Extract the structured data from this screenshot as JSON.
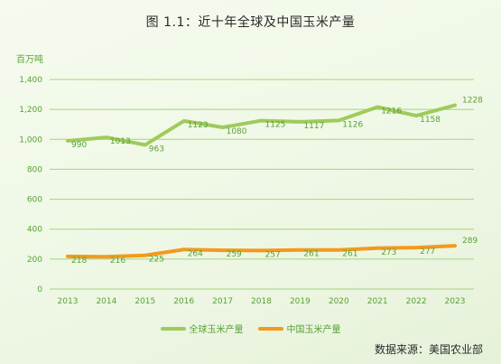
{
  "title": "图 1.1：近十年全球及中国玉米产量",
  "source": "数据来源：美国农业部",
  "chart_data": {
    "type": "line",
    "ylabel": "百万吨",
    "ylim": [
      0,
      1400
    ],
    "yticks": [
      0,
      200,
      400,
      600,
      800,
      1000,
      1200,
      1400
    ],
    "ytick_labels": [
      "0",
      "200",
      "400",
      "600",
      "800",
      "1,000",
      "1,200",
      "1,400"
    ],
    "categories": [
      "2013",
      "2014",
      "2015",
      "2016",
      "2017",
      "2018",
      "2019",
      "2020",
      "2021",
      "2022",
      "2023"
    ],
    "grid": true,
    "legend": "bottom",
    "series": [
      {
        "name": "全球玉米产量",
        "values": [
          990,
          1013,
          963,
          1123,
          1080,
          1125,
          1117,
          1126,
          1216,
          1158,
          1228
        ],
        "color": "#9fcb5a"
      },
      {
        "name": "中国玉米产量",
        "values": [
          218,
          216,
          225,
          264,
          259,
          257,
          261,
          261,
          273,
          277,
          289
        ],
        "color": "#f39a1c"
      }
    ]
  },
  "colors": {
    "label_text": "#5aa136",
    "grid": "#a8d27e"
  }
}
